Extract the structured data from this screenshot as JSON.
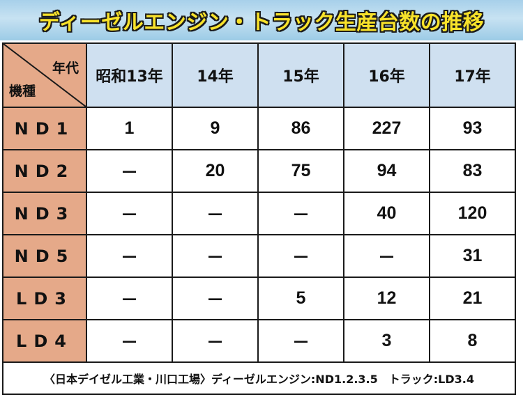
{
  "title": "ディーゼルエンジン・トラック生産台数の推移",
  "corner": {
    "top_label": "年代",
    "bottom_label": "機種"
  },
  "chart_data": {
    "type": "table",
    "title": "ディーゼルエンジン・トラック生産台数の推移",
    "columns": [
      "昭和13年",
      "14年",
      "15年",
      "16年",
      "17年"
    ],
    "rows": [
      {
        "label": "ND1",
        "values": [
          "1",
          "9",
          "86",
          "227",
          "93"
        ]
      },
      {
        "label": "ND2",
        "values": [
          "－",
          "20",
          "75",
          "94",
          "83"
        ]
      },
      {
        "label": "ND3",
        "values": [
          "－",
          "－",
          "－",
          "40",
          "120"
        ]
      },
      {
        "label": "ND5",
        "values": [
          "－",
          "－",
          "－",
          "－",
          "31"
        ]
      },
      {
        "label": "LD3",
        "values": [
          "－",
          "－",
          "5",
          "12",
          "21"
        ]
      },
      {
        "label": "LD4",
        "values": [
          "－",
          "－",
          "－",
          "3",
          "8"
        ]
      }
    ]
  },
  "footnote": "〈日本デイゼル工業・川口工場〉ディーゼルエンジン:ND1.2.3.5　トラック:LD3.4",
  "colors": {
    "header_blue": "#cfe0f0",
    "label_salmon": "#e5a989",
    "title_yellow": "#f8e22a",
    "banner_blue": "#a7d0ea"
  }
}
